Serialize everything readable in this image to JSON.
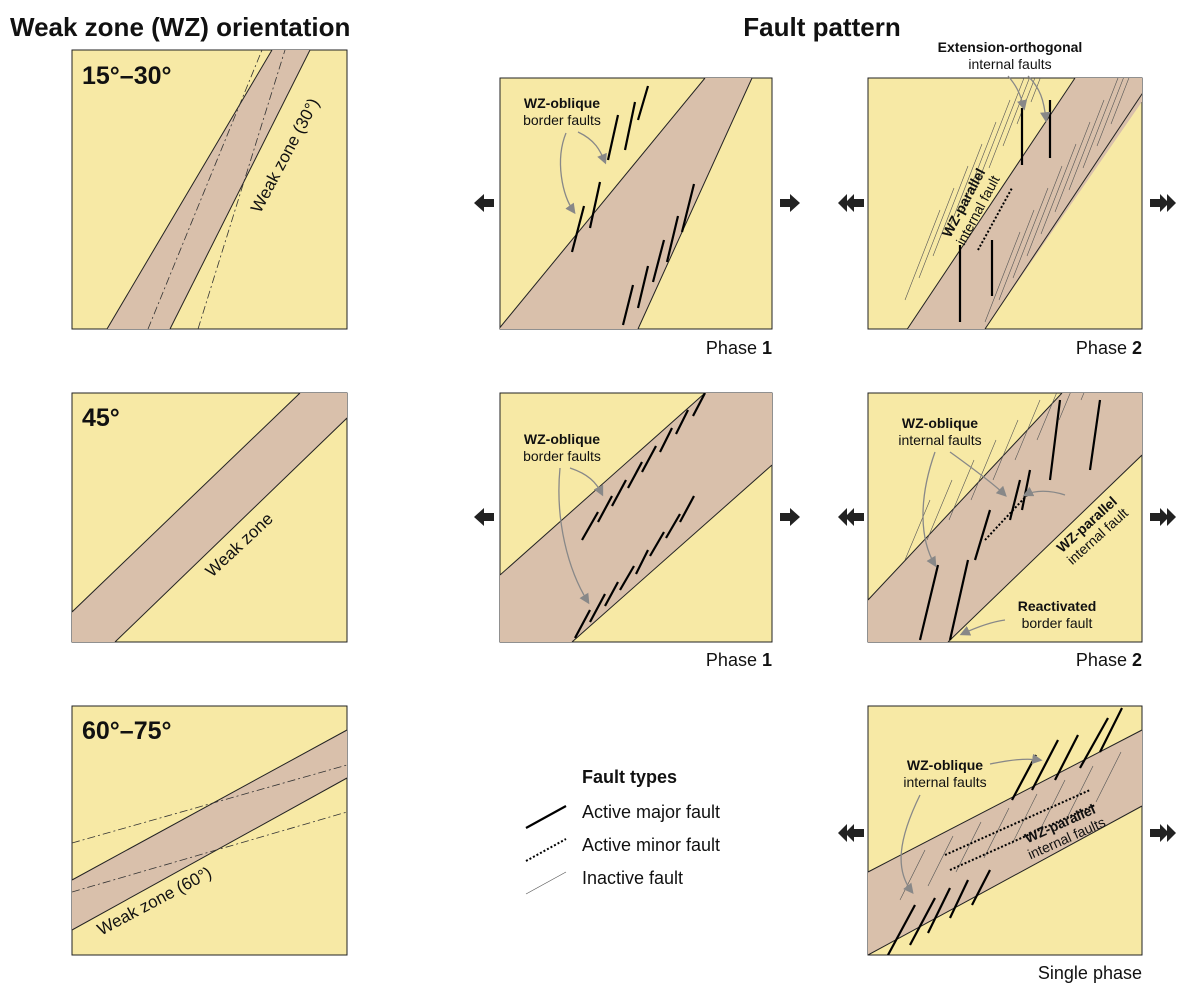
{
  "headers": {
    "orientation": "Weak zone (WZ) orientation",
    "fault_pattern": "Fault pattern"
  },
  "orientation_panels": [
    {
      "angle": "15°–30°",
      "zone_label": "Weak zone (30°)"
    },
    {
      "angle": "45°",
      "zone_label": "Weak zone"
    },
    {
      "angle": "60°–75°",
      "zone_label": "Weak zone (60°)"
    }
  ],
  "pattern_panels": [
    {
      "phase_text": "Phase",
      "phase_number": "1",
      "annotations": [
        {
          "bold": "WZ-oblique",
          "normal": "border faults"
        }
      ]
    },
    {
      "phase_text": "Phase",
      "phase_number": "2",
      "annotations": [
        {
          "bold": "Extension-orthogonal",
          "normal": "internal faults"
        },
        {
          "bold": "WZ-parallel",
          "normal": "internal fault"
        }
      ]
    },
    {
      "phase_text": "Phase",
      "phase_number": "1",
      "annotations": [
        {
          "bold": "WZ-oblique",
          "normal": "border faults"
        }
      ]
    },
    {
      "phase_text": "Phase",
      "phase_number": "2",
      "annotations": [
        {
          "bold": "WZ-oblique",
          "normal": "internal faults"
        },
        {
          "bold": "WZ-parallel",
          "normal": "internal fault"
        },
        {
          "bold": "Reactivated",
          "normal": "border fault"
        }
      ]
    },
    {
      "phase_text": "Single phase",
      "annotations": [
        {
          "bold": "WZ-oblique",
          "normal": "internal faults"
        },
        {
          "bold": "WZ-parallel",
          "normal": "internal faults"
        }
      ]
    }
  ],
  "legend": {
    "title": "Fault types",
    "items": [
      "Active major fault",
      "Active minor fault",
      "Inactive fault"
    ]
  }
}
